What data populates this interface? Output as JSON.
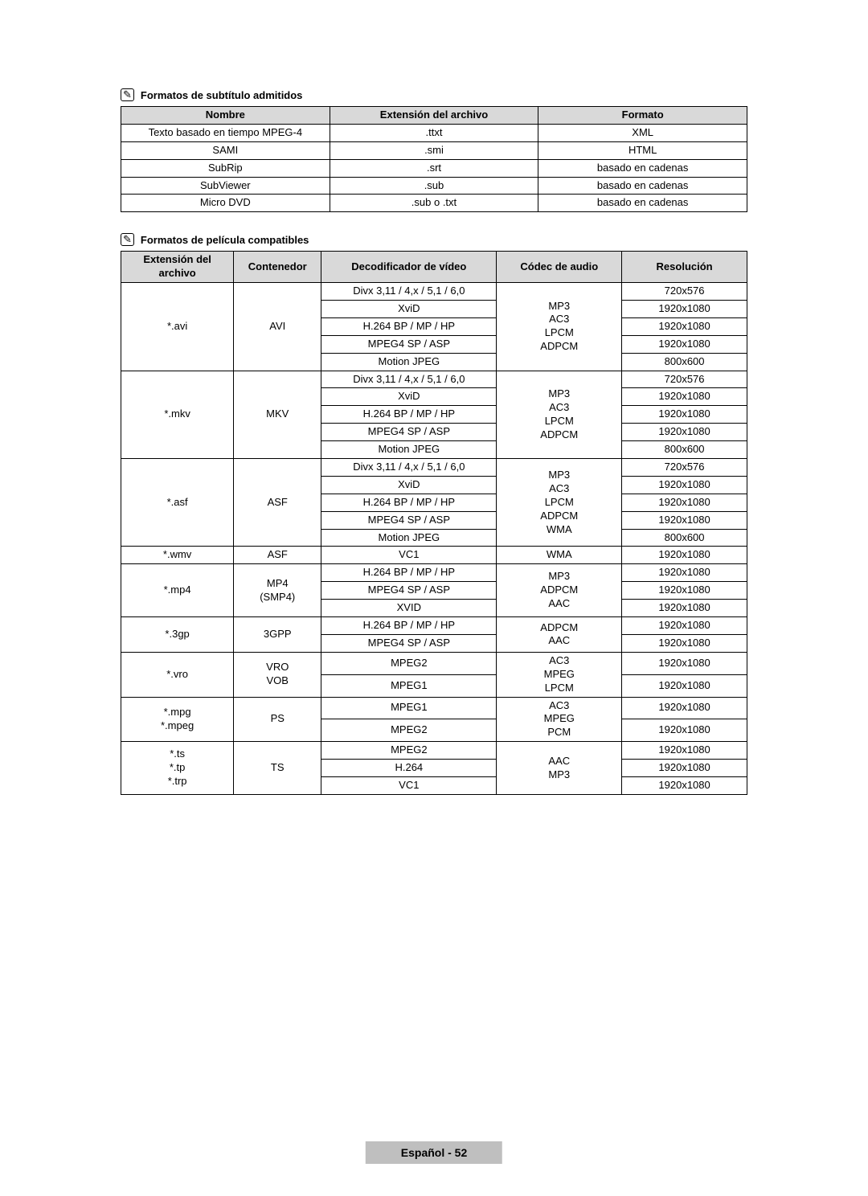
{
  "section1": {
    "title": "Formatos de subtítulo admitidos",
    "headers": [
      "Nombre",
      "Extensión del archivo",
      "Formato"
    ],
    "rows": [
      [
        "Texto basado en tiempo MPEG-4",
        ".ttxt",
        "XML"
      ],
      [
        "SAMI",
        ".smi",
        "HTML"
      ],
      [
        "SubRip",
        ".srt",
        "basado en cadenas"
      ],
      [
        "SubViewer",
        ".sub",
        "basado en cadenas"
      ],
      [
        "Micro DVD",
        ".sub o .txt",
        "basado en cadenas"
      ]
    ]
  },
  "section2": {
    "title": "Formatos de película compatibles",
    "headers": [
      "Extensión del archivo",
      "Contenedor",
      "Decodificador de vídeo",
      "Códec de audio",
      "Resolución"
    ],
    "groups": [
      {
        "ext": "*.avi",
        "container": "AVI",
        "audio": "MP3\nAC3\nLPCM\nADPCM",
        "rows": [
          {
            "vdec": "Divx 3,11 / 4,x / 5,1 / 6,0",
            "res": "720x576"
          },
          {
            "vdec": "XviD",
            "res": "1920x1080"
          },
          {
            "vdec": "H.264 BP / MP / HP",
            "res": "1920x1080"
          },
          {
            "vdec": "MPEG4 SP / ASP",
            "res": "1920x1080"
          },
          {
            "vdec": "Motion JPEG",
            "res": "800x600"
          }
        ]
      },
      {
        "ext": "*.mkv",
        "container": "MKV",
        "audio": "MP3\nAC3\nLPCM\nADPCM",
        "rows": [
          {
            "vdec": "Divx 3,11 / 4,x / 5,1 / 6,0",
            "res": "720x576"
          },
          {
            "vdec": "XviD",
            "res": "1920x1080"
          },
          {
            "vdec": "H.264 BP / MP / HP",
            "res": "1920x1080"
          },
          {
            "vdec": "MPEG4 SP / ASP",
            "res": "1920x1080"
          },
          {
            "vdec": "Motion JPEG",
            "res": "800x600"
          }
        ]
      },
      {
        "ext": "*.asf",
        "container": "ASF",
        "audio": "MP3\nAC3\nLPCM\nADPCM\nWMA",
        "rows": [
          {
            "vdec": "Divx 3,11 / 4,x / 5,1 / 6,0",
            "res": "720x576"
          },
          {
            "vdec": "XviD",
            "res": "1920x1080"
          },
          {
            "vdec": "H.264 BP / MP / HP",
            "res": "1920x1080"
          },
          {
            "vdec": "MPEG4 SP / ASP",
            "res": "1920x1080"
          },
          {
            "vdec": "Motion JPEG",
            "res": "800x600"
          }
        ]
      },
      {
        "ext": "*.wmv",
        "container": "ASF",
        "audio": "WMA",
        "rows": [
          {
            "vdec": "VC1",
            "res": "1920x1080"
          }
        ]
      },
      {
        "ext": "*.mp4",
        "container": "MP4\n(SMP4)",
        "audio": "MP3\nADPCM\nAAC",
        "rows": [
          {
            "vdec": "H.264 BP / MP / HP",
            "res": "1920x1080"
          },
          {
            "vdec": "MPEG4 SP / ASP",
            "res": "1920x1080"
          },
          {
            "vdec": "XVID",
            "res": "1920x1080"
          }
        ]
      },
      {
        "ext": "*.3gp",
        "container": "3GPP",
        "audio": "ADPCM\nAAC",
        "rows": [
          {
            "vdec": "H.264 BP / MP / HP",
            "res": "1920x1080"
          },
          {
            "vdec": "MPEG4 SP / ASP",
            "res": "1920x1080"
          }
        ]
      },
      {
        "ext": "*.vro",
        "container": "VRO\nVOB",
        "audio": "AC3\nMPEG\nLPCM",
        "rows": [
          {
            "vdec": "MPEG2",
            "res": "1920x1080"
          },
          {
            "vdec": "MPEG1",
            "res": "1920x1080"
          }
        ]
      },
      {
        "ext": "*.mpg\n*.mpeg",
        "container": "PS",
        "audio": "AC3\nMPEG\nPCM",
        "rows": [
          {
            "vdec": "MPEG1",
            "res": "1920x1080"
          },
          {
            "vdec": "MPEG2",
            "res": "1920x1080"
          }
        ]
      },
      {
        "ext": "*.ts\n*.tp\n*.trp",
        "container": "TS",
        "audio": "AAC\nMP3",
        "rows": [
          {
            "vdec": "MPEG2",
            "res": "1920x1080"
          },
          {
            "vdec": "H.264",
            "res": "1920x1080"
          },
          {
            "vdec": "VC1",
            "res": "1920x1080"
          }
        ]
      }
    ]
  },
  "footer": "Español - 52"
}
